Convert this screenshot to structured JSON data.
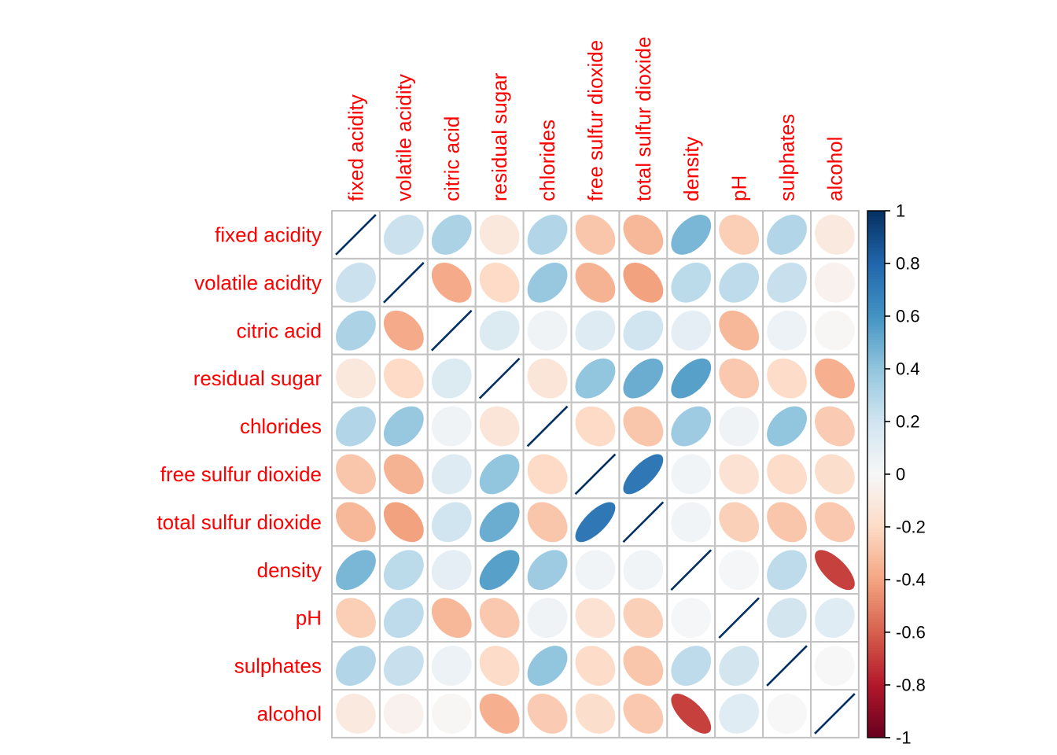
{
  "chart_data": {
    "type": "heatmap",
    "subtype": "correlation-ellipse-matrix",
    "title": "",
    "diagonal_glyph": "line",
    "legend_position": "right",
    "grid": true,
    "variables": [
      "fixed acidity",
      "volatile acidity",
      "citric acid",
      "residual sugar",
      "chlorides",
      "free sulfur dioxide",
      "total sulfur dioxide",
      "density",
      "pH",
      "sulphates",
      "alcohol"
    ],
    "matrix": [
      [
        1.0,
        0.22,
        0.32,
        -0.11,
        0.3,
        -0.28,
        -0.33,
        0.46,
        -0.25,
        0.3,
        -0.1
      ],
      [
        0.22,
        1.0,
        -0.38,
        -0.2,
        0.38,
        -0.35,
        -0.41,
        0.27,
        0.26,
        0.23,
        -0.04
      ],
      [
        0.32,
        -0.38,
        1.0,
        0.14,
        0.04,
        0.13,
        0.2,
        0.1,
        -0.33,
        0.06,
        -0.01
      ],
      [
        -0.11,
        -0.2,
        0.14,
        1.0,
        -0.13,
        0.4,
        0.5,
        0.55,
        -0.27,
        -0.19,
        -0.36
      ],
      [
        0.3,
        0.38,
        0.04,
        -0.13,
        1.0,
        -0.2,
        -0.28,
        0.36,
        0.04,
        0.4,
        -0.26
      ],
      [
        -0.28,
        -0.35,
        0.13,
        0.4,
        -0.2,
        1.0,
        0.72,
        0.03,
        -0.15,
        -0.19,
        -0.18
      ],
      [
        -0.33,
        -0.41,
        0.2,
        0.5,
        -0.28,
        0.72,
        1.0,
        0.03,
        -0.24,
        -0.28,
        -0.27
      ],
      [
        0.46,
        0.27,
        0.1,
        0.55,
        0.36,
        0.03,
        0.03,
        1.0,
        0.01,
        0.26,
        -0.69
      ],
      [
        -0.25,
        0.26,
        -0.33,
        -0.27,
        0.04,
        -0.15,
        -0.24,
        0.01,
        1.0,
        0.19,
        0.12
      ],
      [
        0.3,
        0.23,
        0.06,
        -0.19,
        0.4,
        -0.19,
        -0.28,
        0.26,
        0.19,
        1.0,
        0.0
      ],
      [
        -0.1,
        -0.04,
        -0.01,
        -0.36,
        -0.26,
        -0.18,
        -0.27,
        -0.69,
        0.12,
        0.0,
        1.0
      ]
    ],
    "value_range": [
      -1,
      1
    ],
    "colorbar": {
      "tick_labels": [
        "1",
        "0.8",
        "0.6",
        "0.4",
        "0.2",
        "0",
        "-0.2",
        "-0.4",
        "-0.6",
        "-0.8",
        "-1"
      ],
      "tick_values": [
        1,
        0.8,
        0.6,
        0.4,
        0.2,
        0,
        -0.2,
        -0.4,
        -0.6,
        -0.8,
        -1
      ],
      "max_label": "1",
      "min_label": "-1"
    },
    "palette": [
      {
        "value": -1.0,
        "color": "#67001F"
      },
      {
        "value": -0.8,
        "color": "#B2182B"
      },
      {
        "value": -0.6,
        "color": "#D6604D"
      },
      {
        "value": -0.4,
        "color": "#F4A582"
      },
      {
        "value": -0.2,
        "color": "#FDDBC7"
      },
      {
        "value": 0.0,
        "color": "#F7F7F7"
      },
      {
        "value": 0.2,
        "color": "#D1E5F0"
      },
      {
        "value": 0.4,
        "color": "#92C5DE"
      },
      {
        "value": 0.6,
        "color": "#4393C3"
      },
      {
        "value": 0.8,
        "color": "#2166AC"
      },
      {
        "value": 1.0,
        "color": "#053061"
      }
    ],
    "colors": {
      "variable_label": "#FF0000",
      "grid_line": "#C2C2C2",
      "cell_background": "#FFFFFF",
      "colorbar_frame": "#000000",
      "colorbar_tick_text": "#000000",
      "background": "#FFFFFF"
    }
  }
}
